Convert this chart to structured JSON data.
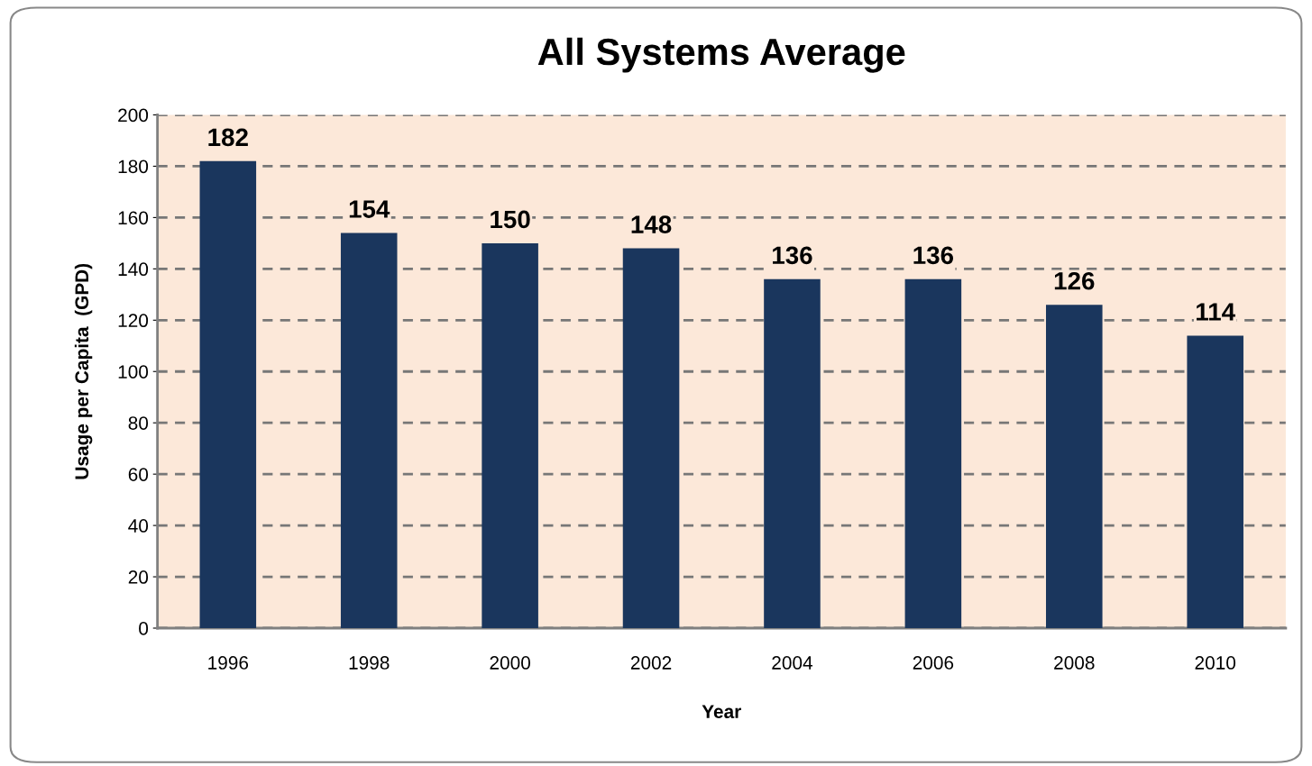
{
  "chart_data": {
    "type": "bar",
    "title": "All Systems Average",
    "xlabel": "Year",
    "ylabel": "Usage per Capita  (GPD)",
    "categories": [
      "1996",
      "1998",
      "2000",
      "2002",
      "2004",
      "2006",
      "2008",
      "2010"
    ],
    "values": [
      182,
      154,
      150,
      148,
      136,
      136,
      126,
      114
    ],
    "color": "#1a365d",
    "ylim": [
      0,
      200
    ],
    "yticks": [
      0,
      20,
      40,
      60,
      80,
      100,
      120,
      140,
      160,
      180,
      200
    ],
    "grid": "y",
    "data_labels": true
  }
}
